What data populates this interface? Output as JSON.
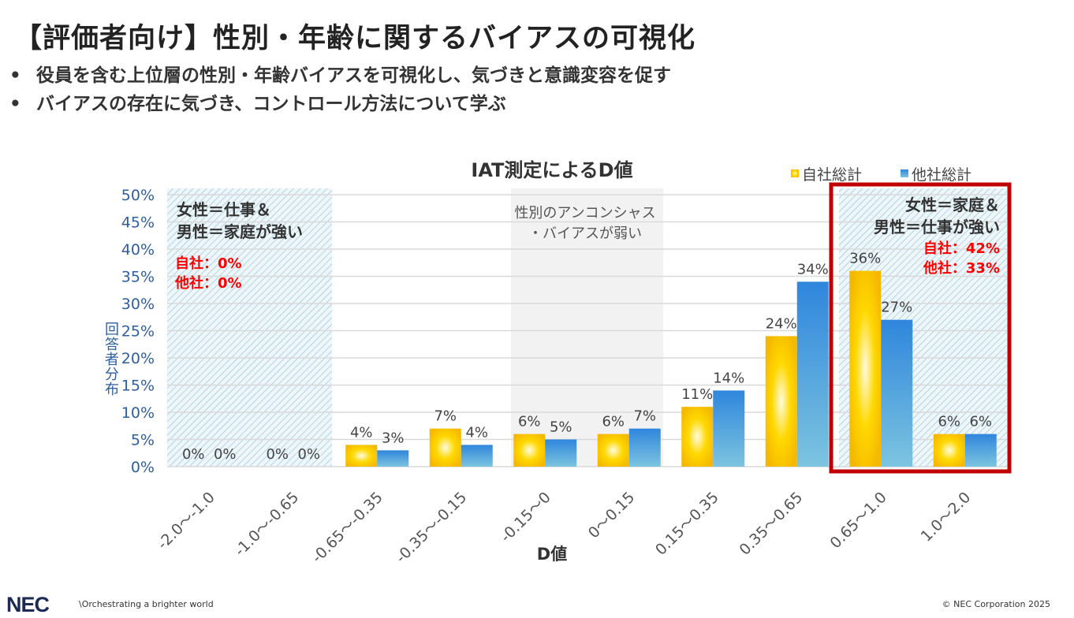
{
  "title": "【評価者向け】性別・年齢に関するバイアスの可視化",
  "bullets": [
    "役員を含む上位層の性別・年齢バイアスを可視化し、気づきと意識変容を促す",
    "バイアスの存在に気づき、コントロール方法について学ぶ"
  ],
  "chart_data": {
    "type": "bar",
    "title": "IAT測定によるD値",
    "xlabel": "D値",
    "ylabel": "回答者分布",
    "ylim": [
      0,
      50
    ],
    "yticks": [
      "0%",
      "5%",
      "10%",
      "15%",
      "20%",
      "25%",
      "30%",
      "35%",
      "40%",
      "45%",
      "50%"
    ],
    "grid": true,
    "legend_position": "top-right",
    "categories": [
      "-2.0～-1.0",
      "-1.0～-0.65",
      "-0.65～-0.35",
      "-0.35～-0.15",
      "-0.15～0",
      "0～0.15",
      "0.15～0.35",
      "0.35～0.65",
      "0.65～1.0",
      "1.0～2.0"
    ],
    "series": [
      {
        "name": "自社総計",
        "color": "#f5c000",
        "values": [
          0,
          0,
          4,
          7,
          6,
          6,
          11,
          24,
          36,
          6
        ],
        "labels": [
          "0%",
          "0%",
          "4%",
          "7%",
          "6%",
          "6%",
          "11%",
          "24%",
          "36%",
          "6%"
        ]
      },
      {
        "name": "他社総計",
        "color": "#3a8ad8",
        "values": [
          0,
          0,
          3,
          4,
          5,
          7,
          14,
          34,
          27,
          6
        ],
        "labels": [
          "0%",
          "0%",
          "3%",
          "4%",
          "5%",
          "7%",
          "14%",
          "34%",
          "27%",
          "6%"
        ]
      }
    ],
    "annotations": {
      "left": {
        "lines": [
          "女性＝仕事＆",
          "男性＝家庭が強い"
        ],
        "red": [
          "自社：0%",
          "他社：0%"
        ]
      },
      "middle": {
        "lines": [
          "性別のアンコンシャス",
          "・バイアスが弱い"
        ]
      },
      "right": {
        "lines": [
          "女性＝家庭＆",
          "男性＝仕事が強い"
        ],
        "red": [
          "自社：42%",
          "他社：33%"
        ]
      }
    },
    "highlight_color": "#c00000"
  },
  "footer": {
    "logo": "NEC",
    "tagline": "\\Orchestrating a brighter world",
    "copyright": "© NEC Corporation 2025"
  }
}
